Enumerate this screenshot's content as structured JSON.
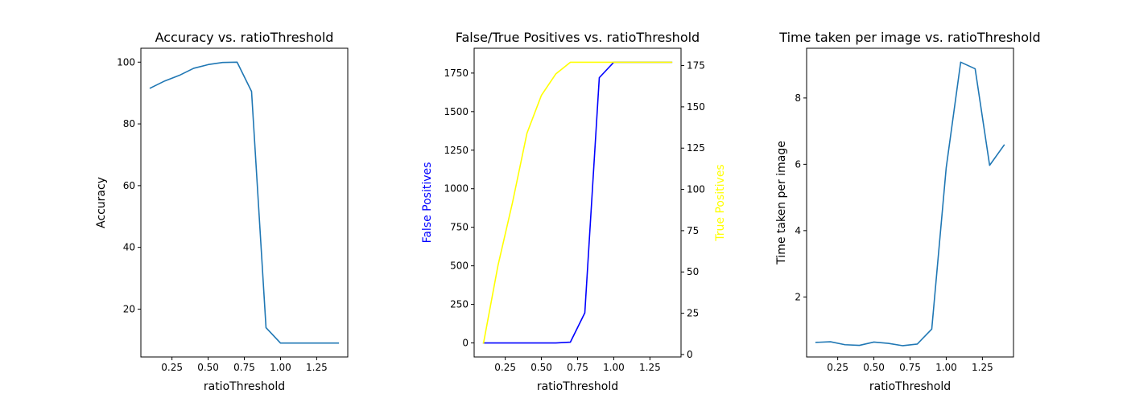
{
  "chart_data": [
    {
      "type": "line",
      "title": "Accuracy vs. ratioThreshold",
      "xlabel": "ratioThreshold",
      "ylabel": "Accuracy",
      "xlim": [
        0.035,
        1.465
      ],
      "ylim": [
        4.5,
        104.5
      ],
      "xticks": [
        0.25,
        0.5,
        0.75,
        1.0,
        1.25
      ],
      "xtick_labels": [
        "0.25",
        "0.50",
        "0.75",
        "1.00",
        "1.25"
      ],
      "yticks": [
        20,
        40,
        60,
        80,
        100
      ],
      "ytick_labels": [
        "20",
        "40",
        "60",
        "80",
        "100"
      ],
      "grid": false,
      "series": [
        {
          "color": "#1f77b4",
          "x": [
            0.1,
            0.2,
            0.3,
            0.4,
            0.5,
            0.6,
            0.7,
            0.8,
            0.9,
            1.0,
            1.1,
            1.2,
            1.3,
            1.4
          ],
          "y": [
            91.6,
            93.9,
            95.7,
            98.0,
            99.2,
            99.9,
            100.0,
            90.5,
            14.0,
            9.0,
            9.0,
            9.0,
            9.0,
            9.0
          ]
        }
      ]
    },
    {
      "type": "line",
      "title": "False/True Positives vs. ratioThreshold",
      "xlabel": "ratioThreshold",
      "ylabel": "False Positives",
      "ylabel_color": "#0000ff",
      "y2label": "True Positives",
      "y2label_color": "#ffff00",
      "xlim": [
        0.035,
        1.465
      ],
      "ylim": [
        -91,
        1911
      ],
      "y2lim": [
        -1.5,
        185.5
      ],
      "xticks": [
        0.25,
        0.5,
        0.75,
        1.0,
        1.25
      ],
      "xtick_labels": [
        "0.25",
        "0.50",
        "0.75",
        "1.00",
        "1.25"
      ],
      "yticks": [
        0,
        250,
        500,
        750,
        1000,
        1250,
        1500,
        1750
      ],
      "ytick_labels": [
        "0",
        "250",
        "500",
        "750",
        "1000",
        "1250",
        "1500",
        "1750"
      ],
      "y2ticks": [
        0,
        25,
        50,
        75,
        100,
        125,
        150,
        175
      ],
      "y2tick_labels": [
        "0",
        "25",
        "50",
        "75",
        "100",
        "125",
        "150",
        "175"
      ],
      "grid": false,
      "series": [
        {
          "axis": "left",
          "color": "#0000ff",
          "x": [
            0.1,
            0.2,
            0.3,
            0.4,
            0.5,
            0.6,
            0.7,
            0.8,
            0.9,
            1.0,
            1.1,
            1.2,
            1.3,
            1.4
          ],
          "y": [
            0,
            0,
            0,
            0,
            0,
            0,
            5,
            195,
            1720,
            1820,
            1820,
            1820,
            1820,
            1820
          ]
        },
        {
          "axis": "right",
          "color": "#ffff00",
          "x": [
            0.1,
            0.2,
            0.3,
            0.4,
            0.5,
            0.6,
            0.7,
            0.8,
            0.9,
            1.0,
            1.1,
            1.2,
            1.3,
            1.4
          ],
          "y": [
            7,
            54,
            92,
            134,
            157,
            170,
            177,
            177,
            177,
            177,
            177,
            177,
            177,
            177
          ]
        }
      ]
    },
    {
      "type": "line",
      "title": "Time taken per image vs. ratioThreshold",
      "xlabel": "ratioThreshold",
      "ylabel": "Time taken per image",
      "xlim": [
        0.035,
        1.465
      ],
      "ylim": [
        0.19,
        9.5
      ],
      "xticks": [
        0.25,
        0.5,
        0.75,
        1.0,
        1.25
      ],
      "xtick_labels": [
        "0.25",
        "0.50",
        "0.75",
        "1.00",
        "1.25"
      ],
      "yticks": [
        2,
        4,
        6,
        8
      ],
      "ytick_labels": [
        "2",
        "4",
        "6",
        "8"
      ],
      "grid": false,
      "series": [
        {
          "color": "#1f77b4",
          "x": [
            0.1,
            0.2,
            0.3,
            0.4,
            0.5,
            0.6,
            0.7,
            0.8,
            0.9,
            1.0,
            1.1,
            1.2,
            1.3,
            1.4
          ],
          "y": [
            0.63,
            0.65,
            0.56,
            0.54,
            0.64,
            0.6,
            0.53,
            0.58,
            1.03,
            5.9,
            9.08,
            8.88,
            5.97,
            6.58
          ]
        }
      ]
    }
  ]
}
